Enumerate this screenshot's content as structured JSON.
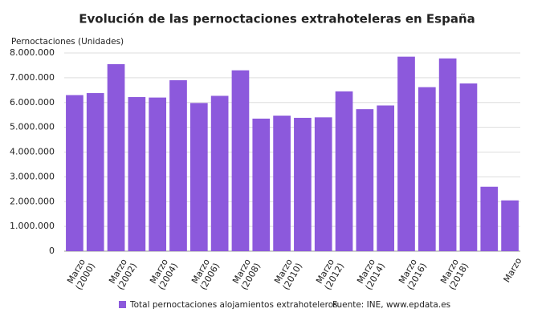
{
  "chart_data": {
    "type": "bar",
    "title": "Evolución de las pernoctaciones extrahoteleras en España",
    "y_label": "Pernoctaciones (Unidades)",
    "source": "Fuente: INE, www.epdata.es",
    "categories": [
      "Marzo\n(2000)",
      null,
      "Marzo\n(2002)",
      null,
      "Marzo\n(2004)",
      null,
      "Marzo\n(2006)",
      null,
      "Marzo\n(2008)",
      null,
      "Marzo\n(2010)",
      null,
      "Marzo\n(2012)",
      null,
      "Marzo\n(2014)",
      null,
      "Marzo\n(2016)",
      null,
      "Marzo\n(2018)",
      null,
      null,
      "Marzo"
    ],
    "series": [
      {
        "name": "Total pernoctaciones alojamientos extrahoteleros",
        "color": "#8c59dc",
        "values": [
          6300000,
          6380000,
          7550000,
          6220000,
          6200000,
          6900000,
          5980000,
          6270000,
          7300000,
          5350000,
          5470000,
          5380000,
          5400000,
          6450000,
          5730000,
          5880000,
          7850000,
          6620000,
          7780000,
          6770000,
          2600000,
          2050000
        ]
      }
    ],
    "ylim": [
      0,
      8000000
    ],
    "yticks": [
      {
        "value": 0,
        "label": "0"
      },
      {
        "value": 1000000,
        "label": "1.000.000"
      },
      {
        "value": 2000000,
        "label": "2.000.000"
      },
      {
        "value": 3000000,
        "label": "3.000.000"
      },
      {
        "value": 4000000,
        "label": "4.000.000"
      },
      {
        "value": 5000000,
        "label": "5.000.000"
      },
      {
        "value": 6000000,
        "label": "6.000.000"
      },
      {
        "value": 7000000,
        "label": "7.000.000"
      },
      {
        "value": 8000000,
        "label": "8.000.000"
      }
    ],
    "grid": true
  }
}
